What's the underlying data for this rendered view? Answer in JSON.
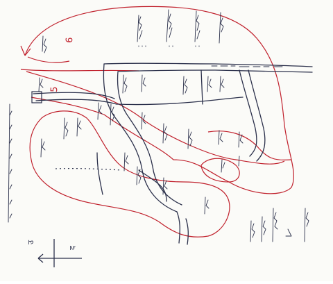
{
  "map": {
    "ink_color": "#2a2f4a",
    "boundary_color": "#c0202c",
    "paper_color": "#fbfbf8",
    "sector_5_label": "5",
    "sector_6_label": "6"
  },
  "compass": {
    "north_arrow_icon": "north-arrow-icon",
    "north_label": "उ",
    "south_label": "द"
  }
}
